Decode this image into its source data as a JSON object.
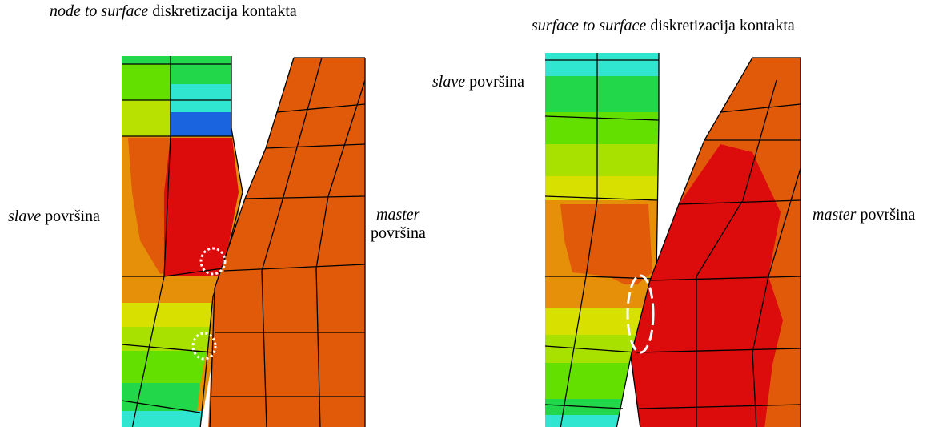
{
  "left_panel": {
    "title_italic": "node to surface",
    "title_rest": " diskretizacija kontakta",
    "slave_italic": "slave",
    "slave_rest": " površina",
    "master_italic": "master",
    "master_line2": "površina"
  },
  "right_panel": {
    "title_italic": "surface to surface",
    "title_rest": " diskretizacija kontakta",
    "slave_italic": "slave",
    "slave_rest": " površina",
    "master_italic": "master",
    "master_rest": " površina"
  },
  "colors": {
    "orange": "#e05a0a",
    "red": "#dc0c0c",
    "dark_orange": "#e6900a",
    "yellow": "#d8e000",
    "yellow_green": "#a8e000",
    "green": "#22d84a",
    "light_green": "#64e000",
    "teal": "#00e0a0",
    "cyan": "#30e6d0",
    "blue": "#1a64e0",
    "mesh": "#000000",
    "marker": "#ffffff"
  }
}
